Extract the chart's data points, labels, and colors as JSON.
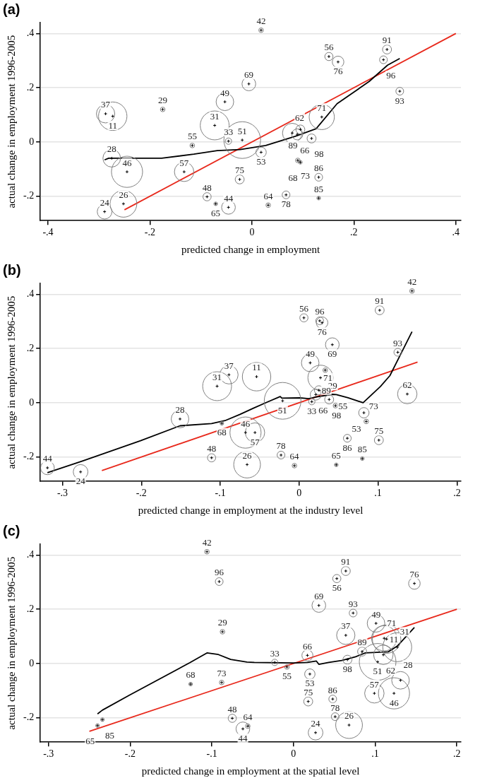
{
  "chart_data": [
    {
      "type": "bubble",
      "title": "(a)",
      "xlabel": "predicted change in employment",
      "ylabel": "actual change in employment 1996-2005",
      "xlim": [
        -0.415,
        0.41
      ],
      "ylim": [
        -0.29,
        0.44
      ],
      "xticks": [
        {
          "value": -0.4,
          "label": "-.4"
        },
        {
          "value": -0.2,
          "label": "-.2"
        },
        {
          "value": 0,
          "label": "0"
        },
        {
          "value": 0.2,
          "label": ".2"
        },
        {
          "value": 0.4,
          "label": ".4"
        }
      ],
      "yticks": [
        {
          "value": -0.2,
          "label": "-.2"
        },
        {
          "value": 0,
          "label": "0"
        },
        {
          "value": 0.2,
          "label": ".2"
        },
        {
          "value": 0.4,
          "label": ".4"
        }
      ],
      "grid": "y",
      "legend": false,
      "series": [
        {
          "type": "bubble",
          "color": "#808080",
          "x": [
            -0.287,
            -0.273,
            -0.175,
            -0.053,
            -0.006,
            -0.073,
            -0.046,
            -0.019,
            -0.117,
            -0.275,
            -0.245,
            -0.133,
            -0.024,
            -0.088,
            -0.071,
            -0.046,
            -0.252,
            -0.289,
            0.018,
            0.151,
            0.169,
            0.265,
            0.258,
            0.29,
            0.137,
            0.079,
            0.095,
            0.089,
            0.117,
            0.018,
            0.09,
            0.095,
            0.131,
            0.067,
            0.131,
            0.032
          ],
          "values": [
            0.104,
            0.095,
            0.12,
            0.148,
            0.214,
            0.061,
            0.003,
            0.007,
            -0.013,
            -0.06,
            -0.11,
            -0.11,
            -0.138,
            -0.202,
            -0.228,
            -0.241,
            -0.228,
            -0.257,
            0.412,
            0.315,
            0.295,
            0.341,
            0.303,
            0.187,
            0.092,
            0.033,
            0.046,
            0.028,
            0.013,
            -0.038,
            -0.068,
            -0.075,
            -0.13,
            -0.195,
            -0.207,
            -0.233
          ],
          "sizes": [
            0.25,
            0.6,
            0.016,
            0.23,
            0.14,
            0.62,
            0.03,
            1,
            0.016,
            0.23,
            0.72,
            0.28,
            0.06,
            0.05,
            0.01,
            0.14,
            0.53,
            0.16,
            0.016,
            0.05,
            0.1,
            0.06,
            0.045,
            0.045,
            0.47,
            0.28,
            0.06,
            0.09,
            0.06,
            0.08,
            0.016,
            0.01,
            0.045,
            0.045,
            0.01,
            0.016
          ]
        },
        {
          "type": "line",
          "color": "#000000",
          "x": [
            -0.289,
            -0.281,
            -0.177,
            -0.114,
            -0.068,
            -0.023,
            0.027,
            0.085,
            0.126,
            0.167,
            0.23,
            0.266,
            0.29
          ],
          "values": [
            -0.066,
            -0.06,
            -0.06,
            -0.045,
            -0.032,
            -0.028,
            -0.013,
            0.021,
            0.049,
            0.141,
            0.223,
            0.283,
            0.308
          ]
        },
        {
          "type": "line",
          "color": "#e8291c",
          "x": [
            -0.25,
            0.4
          ],
          "values": [
            -0.25,
            0.4
          ]
        }
      ],
      "annotations": [
        {
          "text": "37",
          "x": -0.287,
          "y": 0.104
        },
        {
          "text": "11",
          "x": -0.273,
          "y": 0.095
        },
        {
          "text": "29",
          "x": -0.175,
          "y": 0.12
        },
        {
          "text": "49",
          "x": -0.053,
          "y": 0.148
        },
        {
          "text": "69",
          "x": -0.006,
          "y": 0.214
        },
        {
          "text": "31",
          "x": -0.073,
          "y": 0.061
        },
        {
          "text": "33",
          "x": -0.046,
          "y": 0.003
        },
        {
          "text": "51",
          "x": -0.019,
          "y": 0.007
        },
        {
          "text": "55",
          "x": -0.117,
          "y": -0.013
        },
        {
          "text": "28",
          "x": -0.275,
          "y": -0.06
        },
        {
          "text": "46",
          "x": -0.245,
          "y": -0.11
        },
        {
          "text": "57",
          "x": -0.133,
          "y": -0.11
        },
        {
          "text": "75",
          "x": -0.024,
          "y": -0.138
        },
        {
          "text": "48",
          "x": -0.088,
          "y": -0.202
        },
        {
          "text": "65",
          "x": -0.071,
          "y": -0.228
        },
        {
          "text": "44",
          "x": -0.046,
          "y": -0.241
        },
        {
          "text": "26",
          "x": -0.252,
          "y": -0.228
        },
        {
          "text": "24",
          "x": -0.289,
          "y": -0.257
        },
        {
          "text": "42",
          "x": 0.018,
          "y": 0.412
        },
        {
          "text": "56",
          "x": 0.151,
          "y": 0.315
        },
        {
          "text": "76",
          "x": 0.169,
          "y": 0.295
        },
        {
          "text": "91",
          "x": 0.265,
          "y": 0.341
        },
        {
          "text": "96",
          "x": 0.258,
          "y": 0.303
        },
        {
          "text": "93",
          "x": 0.29,
          "y": 0.187
        },
        {
          "text": "71",
          "x": 0.137,
          "y": 0.092
        },
        {
          "text": "62",
          "x": 0.079,
          "y": 0.033
        },
        {
          "text": "89",
          "x": 0.095,
          "y": 0.046
        },
        {
          "text": "66",
          "x": 0.089,
          "y": 0.028
        },
        {
          "text": "98",
          "x": 0.117,
          "y": 0.013
        },
        {
          "text": "53",
          "x": 0.018,
          "y": -0.038
        },
        {
          "text": "73",
          "x": 0.09,
          "y": -0.068
        },
        {
          "text": "68",
          "x": 0.095,
          "y": -0.075
        },
        {
          "text": "86",
          "x": 0.131,
          "y": -0.13
        },
        {
          "text": "78",
          "x": 0.067,
          "y": -0.195
        },
        {
          "text": "85",
          "x": 0.131,
          "y": -0.207
        },
        {
          "text": "64",
          "x": 0.032,
          "y": -0.233
        }
      ]
    },
    {
      "type": "bubble",
      "title": "(b)",
      "xlabel": "predicted change in employment at the industry level",
      "ylabel": "actual change in employment 1996-2005",
      "xlim": [
        -0.328,
        0.205
      ],
      "ylim": [
        -0.29,
        0.44
      ],
      "xticks": [
        {
          "value": -0.3,
          "label": "-.3"
        },
        {
          "value": -0.2,
          "label": "-.2"
        },
        {
          "value": -0.1,
          "label": "-.1"
        },
        {
          "value": 0,
          "label": "0"
        },
        {
          "value": 0.1,
          "label": ".1"
        },
        {
          "value": 0.2,
          "label": ".2"
        }
      ],
      "yticks": [
        {
          "value": -0.2,
          "label": "-.2"
        },
        {
          "value": 0,
          "label": "0"
        },
        {
          "value": 0.2,
          "label": ".2"
        },
        {
          "value": 0.4,
          "label": ".4"
        }
      ],
      "grid": "y",
      "legend": false,
      "series": [
        {
          "type": "bubble",
          "color": "#808080",
          "x": [
            -0.319,
            -0.277,
            -0.151,
            -0.098,
            -0.104,
            -0.089,
            -0.111,
            -0.068,
            -0.066,
            -0.054,
            -0.056,
            -0.021,
            -0.023,
            -0.006,
            0.006,
            0.026,
            0.029,
            0.042,
            0.014,
            0.033,
            0.027,
            0.025,
            0.021,
            0.137,
            0.016,
            0.038,
            0.046,
            0.082,
            0.085,
            0.061,
            0.101,
            0.08,
            0.047,
            0.102,
            0.143,
            0.125
          ],
          "values": [
            -0.24,
            -0.255,
            -0.06,
            -0.076,
            0.061,
            0.103,
            -0.203,
            -0.11,
            -0.228,
            0.096,
            -0.11,
            0.007,
            -0.193,
            -0.232,
            0.313,
            0.302,
            0.295,
            0.214,
            0.147,
            0.12,
            0.092,
            0.046,
            0.03,
            0.032,
            0.004,
            0.012,
            -0.011,
            -0.037,
            -0.069,
            -0.131,
            -0.138,
            -0.206,
            -0.229,
            0.341,
            0.412,
            0.186
          ],
          "sizes": [
            0.14,
            0.16,
            0.23,
            0.01,
            0.62,
            0.25,
            0.05,
            0.72,
            0.53,
            0.6,
            0.28,
            1,
            0.045,
            0.016,
            0.05,
            0.045,
            0.1,
            0.14,
            0.23,
            0.016,
            0.47,
            0.06,
            0.09,
            0.28,
            0.03,
            0.06,
            0.016,
            0.08,
            0.016,
            0.045,
            0.06,
            0.01,
            0.01,
            0.06,
            0.016,
            0.045
          ]
        },
        {
          "type": "line",
          "color": "#000000",
          "x": [
            -0.319,
            -0.274,
            -0.201,
            -0.151,
            -0.111,
            -0.094,
            -0.075,
            -0.058,
            -0.04,
            -0.024,
            -0.022,
            0.001,
            0.012,
            0.021,
            0.042,
            0.047,
            0.062,
            0.081,
            0.103,
            0.115,
            0.143
          ],
          "values": [
            -0.258,
            -0.214,
            -0.14,
            -0.085,
            -0.077,
            -0.066,
            -0.043,
            -0.02,
            0.003,
            0.023,
            0.017,
            0.018,
            0.015,
            0.021,
            0.031,
            0.03,
            0.018,
            0.0,
            0.06,
            0.1,
            0.262
          ]
        },
        {
          "type": "line",
          "color": "#e8291c",
          "x": [
            -0.25,
            0.15
          ],
          "values": [
            -0.25,
            0.15
          ]
        }
      ],
      "annotations": [
        {
          "text": "44",
          "x": -0.319,
          "y": -0.24
        },
        {
          "text": "24",
          "x": -0.277,
          "y": -0.255
        },
        {
          "text": "28",
          "x": -0.151,
          "y": -0.06
        },
        {
          "text": "68",
          "x": -0.098,
          "y": -0.076
        },
        {
          "text": "31",
          "x": -0.104,
          "y": 0.061
        },
        {
          "text": "37",
          "x": -0.089,
          "y": 0.103
        },
        {
          "text": "48",
          "x": -0.111,
          "y": -0.203
        },
        {
          "text": "46",
          "x": -0.068,
          "y": -0.11
        },
        {
          "text": "26",
          "x": -0.066,
          "y": -0.228
        },
        {
          "text": "11",
          "x": -0.054,
          "y": 0.096
        },
        {
          "text": "57",
          "x": -0.056,
          "y": -0.11
        },
        {
          "text": "51",
          "x": -0.021,
          "y": 0.007
        },
        {
          "text": "78",
          "x": -0.023,
          "y": -0.193
        },
        {
          "text": "64",
          "x": -0.006,
          "y": -0.232
        },
        {
          "text": "56",
          "x": 0.006,
          "y": 0.313
        },
        {
          "text": "96",
          "x": 0.026,
          "y": 0.302
        },
        {
          "text": "76",
          "x": 0.029,
          "y": 0.295
        },
        {
          "text": "69",
          "x": 0.042,
          "y": 0.214
        },
        {
          "text": "49",
          "x": 0.014,
          "y": 0.147
        },
        {
          "text": "29",
          "x": 0.033,
          "y": 0.12
        },
        {
          "text": "71",
          "x": 0.027,
          "y": 0.092
        },
        {
          "text": "89",
          "x": 0.025,
          "y": 0.046
        },
        {
          "text": "66",
          "x": 0.021,
          "y": 0.03
        },
        {
          "text": "62",
          "x": 0.137,
          "y": 0.032
        },
        {
          "text": "33",
          "x": 0.016,
          "y": 0.004
        },
        {
          "text": "98",
          "x": 0.038,
          "y": 0.012
        },
        {
          "text": "55",
          "x": 0.046,
          "y": -0.011
        },
        {
          "text": "53",
          "x": 0.082,
          "y": -0.037
        },
        {
          "text": "73",
          "x": 0.085,
          "y": -0.069
        },
        {
          "text": "86",
          "x": 0.061,
          "y": -0.131
        },
        {
          "text": "75",
          "x": 0.101,
          "y": -0.138
        },
        {
          "text": "85",
          "x": 0.08,
          "y": -0.206
        },
        {
          "text": "65",
          "x": 0.047,
          "y": -0.229
        },
        {
          "text": "91",
          "x": 0.102,
          "y": 0.341
        },
        {
          "text": "42",
          "x": 0.143,
          "y": 0.412
        },
        {
          "text": "93",
          "x": 0.125,
          "y": 0.186
        }
      ]
    },
    {
      "type": "bubble",
      "title": "(c)",
      "xlabel": "predicted change in employment at the spatial level",
      "ylabel": "actual change in employment 1996-2005",
      "xlim": [
        -0.31,
        0.205
      ],
      "ylim": [
        -0.29,
        0.44
      ],
      "xticks": [
        {
          "value": -0.3,
          "label": "-.3"
        },
        {
          "value": -0.2,
          "label": "-.2"
        },
        {
          "value": -0.1,
          "label": "-.1"
        },
        {
          "value": 0,
          "label": "0"
        },
        {
          "value": 0.1,
          "label": ".1"
        },
        {
          "value": 0.2,
          "label": ".2"
        }
      ],
      "yticks": [
        {
          "value": -0.2,
          "label": "-.2"
        },
        {
          "value": 0,
          "label": "0"
        },
        {
          "value": 0.2,
          "label": ".2"
        },
        {
          "value": 0.4,
          "label": ".4"
        }
      ],
      "grid": "y",
      "legend": false,
      "series": [
        {
          "type": "bubble",
          "color": "#808080",
          "x": [
            -0.106,
            -0.091,
            -0.087,
            -0.126,
            -0.088,
            -0.234,
            -0.24,
            -0.075,
            -0.062,
            -0.056,
            0.064,
            0.053,
            0.148,
            0.031,
            0.073,
            0.101,
            0.064,
            0.111,
            0.114,
            0.127,
            0.084,
            0.11,
            0.103,
            0.017,
            0.066,
            -0.023,
            -0.008,
            0.02,
            0.131,
            0.099,
            0.123,
            0.018,
            0.048,
            0.051,
            0.068,
            0.027
          ],
          "values": [
            0.412,
            0.302,
            0.117,
            -0.076,
            -0.07,
            -0.207,
            -0.229,
            -0.202,
            -0.241,
            -0.231,
            0.341,
            0.313,
            0.295,
            0.214,
            0.186,
            0.148,
            0.104,
            0.093,
            0.09,
            0.06,
            0.044,
            0.032,
            0.006,
            0.03,
            0.014,
            0.004,
            -0.013,
            -0.039,
            -0.062,
            -0.11,
            -0.11,
            -0.14,
            -0.131,
            -0.196,
            -0.227,
            -0.255
          ],
          "sizes": [
            0.016,
            0.045,
            0.016,
            0.01,
            0.016,
            0.01,
            0.01,
            0.05,
            0.14,
            0.016,
            0.06,
            0.05,
            0.1,
            0.14,
            0.045,
            0.23,
            0.25,
            0.47,
            0.6,
            0.62,
            0.06,
            0.28,
            1,
            0.09,
            0.06,
            0.03,
            0.016,
            0.08,
            0.23,
            0.28,
            0.72,
            0.06,
            0.045,
            0.045,
            0.53,
            0.16
          ]
        },
        {
          "type": "line",
          "color": "#000000",
          "x": [
            -0.24,
            -0.234,
            -0.201,
            -0.127,
            -0.106,
            -0.092,
            -0.077,
            -0.057,
            -0.048,
            0.0,
            0.017,
            0.028,
            0.031,
            0.043,
            0.059,
            0.076,
            0.088,
            0.116,
            0.127,
            0.148
          ],
          "values": [
            -0.186,
            -0.172,
            -0.117,
            0.003,
            0.039,
            0.033,
            0.015,
            0.005,
            0.004,
            0.002,
            0.004,
            0.009,
            -0.003,
            0.004,
            0.011,
            0.025,
            0.039,
            0.043,
            0.064,
            0.133
          ]
        },
        {
          "type": "line",
          "color": "#e8291c",
          "x": [
            -0.25,
            0.2
          ],
          "values": [
            -0.25,
            0.2
          ]
        }
      ],
      "annotations": [
        {
          "text": "42",
          "x": -0.106,
          "y": 0.412
        },
        {
          "text": "96",
          "x": -0.091,
          "y": 0.302
        },
        {
          "text": "29",
          "x": -0.087,
          "y": 0.117
        },
        {
          "text": "68",
          "x": -0.126,
          "y": -0.076
        },
        {
          "text": "73",
          "x": -0.088,
          "y": -0.07
        },
        {
          "text": "85",
          "x": -0.234,
          "y": -0.207
        },
        {
          "text": "65",
          "x": -0.24,
          "y": -0.229
        },
        {
          "text": "48",
          "x": -0.075,
          "y": -0.202
        },
        {
          "text": "44",
          "x": -0.062,
          "y": -0.241
        },
        {
          "text": "64",
          "x": -0.056,
          "y": -0.231
        },
        {
          "text": "91",
          "x": 0.064,
          "y": 0.341
        },
        {
          "text": "56",
          "x": 0.053,
          "y": 0.313
        },
        {
          "text": "76",
          "x": 0.148,
          "y": 0.295
        },
        {
          "text": "69",
          "x": 0.031,
          "y": 0.214
        },
        {
          "text": "93",
          "x": 0.073,
          "y": 0.186
        },
        {
          "text": "49",
          "x": 0.101,
          "y": 0.148
        },
        {
          "text": "37",
          "x": 0.064,
          "y": 0.104
        },
        {
          "text": "71",
          "x": 0.111,
          "y": 0.093
        },
        {
          "text": "11",
          "x": 0.114,
          "y": 0.09
        },
        {
          "text": "31",
          "x": 0.127,
          "y": 0.06
        },
        {
          "text": "89",
          "x": 0.084,
          "y": 0.044
        },
        {
          "text": "62",
          "x": 0.11,
          "y": 0.032
        },
        {
          "text": "51",
          "x": 0.103,
          "y": 0.006
        },
        {
          "text": "66",
          "x": 0.017,
          "y": 0.03
        },
        {
          "text": "98",
          "x": 0.066,
          "y": 0.014
        },
        {
          "text": "33",
          "x": -0.023,
          "y": 0.004
        },
        {
          "text": "55",
          "x": -0.008,
          "y": -0.013
        },
        {
          "text": "53",
          "x": 0.02,
          "y": -0.039
        },
        {
          "text": "28",
          "x": 0.131,
          "y": -0.062
        },
        {
          "text": "57",
          "x": 0.099,
          "y": -0.11
        },
        {
          "text": "46",
          "x": 0.123,
          "y": -0.11
        },
        {
          "text": "75",
          "x": 0.018,
          "y": -0.14
        },
        {
          "text": "86",
          "x": 0.048,
          "y": -0.131
        },
        {
          "text": "78",
          "x": 0.051,
          "y": -0.196
        },
        {
          "text": "26",
          "x": 0.068,
          "y": -0.227
        },
        {
          "text": "24",
          "x": 0.027,
          "y": -0.255
        }
      ]
    }
  ]
}
